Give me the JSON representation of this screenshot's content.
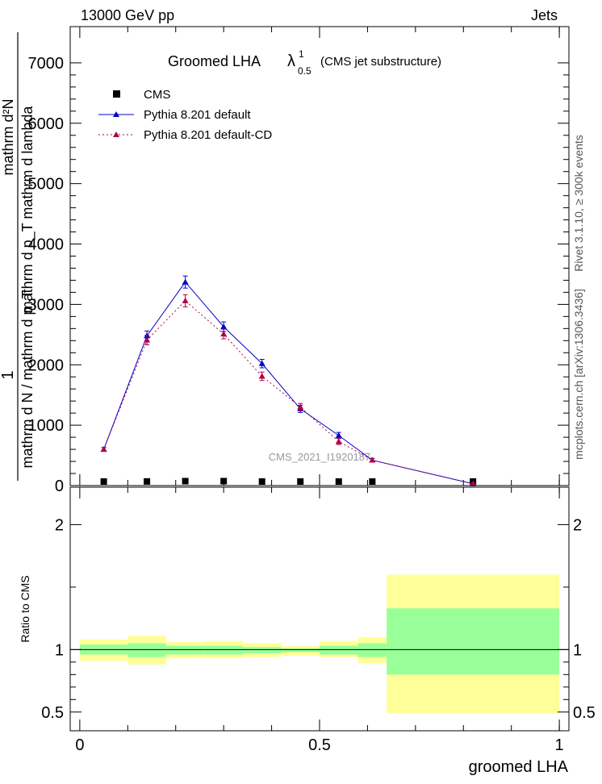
{
  "header": {
    "left": "13000 GeV pp",
    "right": "Jets"
  },
  "side_labels": {
    "rivet": "Rivet 3.1.10, ≥ 300k events",
    "mcplots": "mcplots.cern.ch [arXiv:1306.3436]"
  },
  "watermark": "CMS_2021_I1920187",
  "chart_data": [
    {
      "type": "scatter",
      "panel": "main",
      "title_main": "Groomed LHA",
      "title_symbol": "λ",
      "title_superscript": "1",
      "title_subscript": "0.5",
      "title_note": "(CMS jet substructure)",
      "ylabel_line1": "1",
      "ylabel_frac_num": "mathrm d²N",
      "ylabel_frac_den": "mathrm d p_T mathrm d lambda",
      "ylabel_line2": "mathrm d N / mathrm d p_T",
      "ylim": [
        0,
        7600
      ],
      "yticks": [
        0,
        1000,
        2000,
        3000,
        4000,
        5000,
        6000,
        7000
      ],
      "ytick_labels": [
        "0",
        "1000",
        "2000",
        "3000",
        "4000",
        "5000",
        "6000",
        "7000"
      ],
      "xlim": [
        -0.02,
        1.02
      ],
      "legend_position": "top-left",
      "series": [
        {
          "name": "CMS",
          "color": "#000000",
          "marker": "square",
          "x": [
            0.05,
            0.14,
            0.22,
            0.3,
            0.38,
            0.46,
            0.54,
            0.61,
            0.82
          ],
          "y": [
            0,
            15,
            20,
            20,
            10,
            5,
            5,
            5,
            3
          ]
        },
        {
          "name": "Pythia 8.201 default",
          "color": "#0000cc",
          "marker": "triangle",
          "line": "solid",
          "x": [
            0.05,
            0.14,
            0.22,
            0.3,
            0.38,
            0.46,
            0.54,
            0.61,
            0.82
          ],
          "y": [
            600,
            2480,
            3370,
            2630,
            2020,
            1270,
            830,
            420,
            30
          ],
          "err": [
            30,
            80,
            100,
            80,
            70,
            60,
            50,
            30,
            10
          ]
        },
        {
          "name": "Pythia 8.201 default-CD",
          "color": "#b0004a",
          "marker": "triangle",
          "line": "dotted",
          "x": [
            0.05,
            0.14,
            0.22,
            0.3,
            0.38,
            0.46,
            0.54,
            0.61,
            0.82
          ],
          "y": [
            600,
            2410,
            3060,
            2510,
            1810,
            1300,
            730,
            420,
            30
          ],
          "err": [
            30,
            80,
            100,
            80,
            70,
            60,
            50,
            30,
            10
          ]
        }
      ]
    },
    {
      "type": "area",
      "panel": "ratio",
      "ylabel": "Ratio to CMS",
      "xlabel": "groomed LHA",
      "ylim": [
        0.35,
        2.3
      ],
      "yticks": [
        0.5,
        1,
        2
      ],
      "ytick_labels": [
        "0.5",
        "1",
        "2"
      ],
      "xlim": [
        -0.02,
        1.02
      ],
      "xticks": [
        0,
        0.5,
        1
      ],
      "xtick_labels": [
        "0",
        "0.5",
        "1"
      ],
      "bin_edges": [
        0.0,
        0.1,
        0.18,
        0.26,
        0.34,
        0.42,
        0.5,
        0.58,
        0.64,
        1.0
      ],
      "bands": {
        "outer_color": "#ffff99",
        "inner_color": "#99ff99",
        "outer_low": [
          0.91,
          0.88,
          0.93,
          0.93,
          0.94,
          0.95,
          0.94,
          0.89,
          0.49
        ],
        "outer_high": [
          1.08,
          1.11,
          1.06,
          1.07,
          1.05,
          1.03,
          1.07,
          1.1,
          1.6
        ],
        "inner_low": [
          0.96,
          0.94,
          0.96,
          0.96,
          0.97,
          0.98,
          0.96,
          0.94,
          0.8
        ],
        "inner_high": [
          1.04,
          1.05,
          1.03,
          1.03,
          1.02,
          1.01,
          1.03,
          1.05,
          1.33
        ]
      },
      "reference_line": 1
    }
  ]
}
